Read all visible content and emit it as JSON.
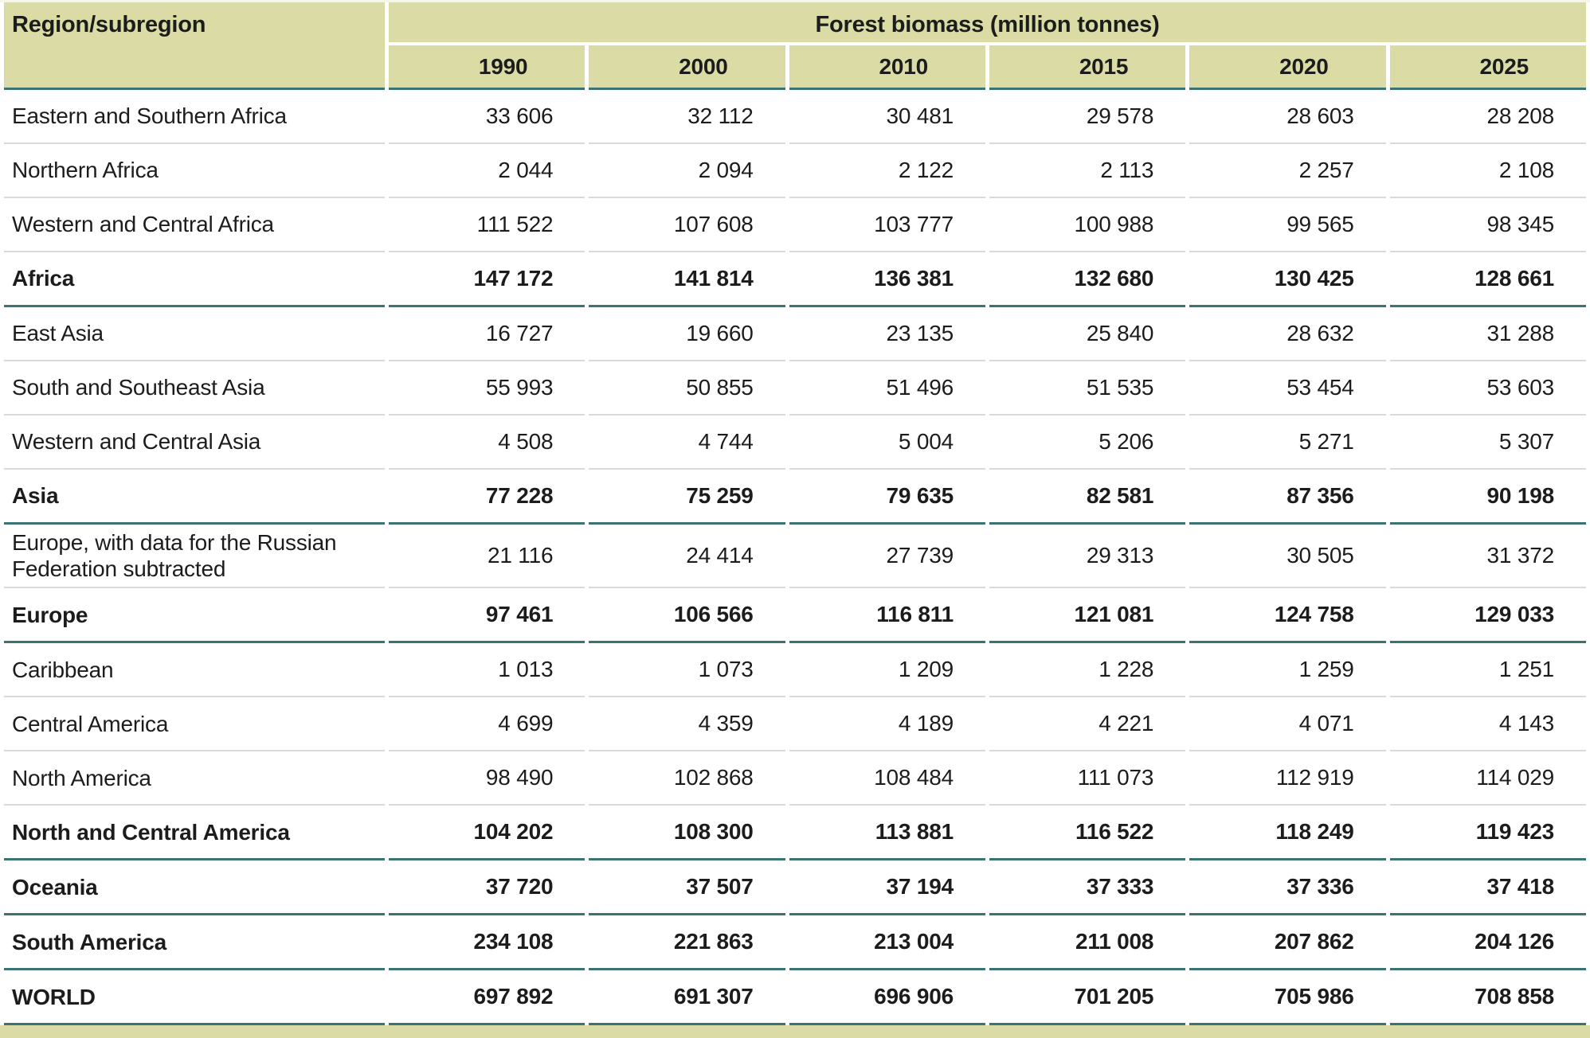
{
  "colors": {
    "header_background": "#dbdca5",
    "teal_divider": "#3a7472",
    "gray_divider": "#d9d9d9"
  },
  "table": {
    "region_header": "Region/subregion",
    "group_header": "Forest biomass (million tonnes)",
    "years": [
      "1990",
      "2000",
      "2010",
      "2015",
      "2020",
      "2025"
    ],
    "rows": [
      {
        "label": "Eastern and Southern Africa",
        "bold": false,
        "values": [
          "33 606",
          "32 112",
          "30 481",
          "29 578",
          "28 603",
          "28 208"
        ]
      },
      {
        "label": "Northern Africa",
        "bold": false,
        "values": [
          "2 044",
          "2 094",
          "2 122",
          "2 113",
          "2 257",
          "2 108"
        ]
      },
      {
        "label": "Western and Central Africa",
        "bold": false,
        "values": [
          "111 522",
          "107 608",
          "103 777",
          "100 988",
          "99 565",
          "98 345"
        ]
      },
      {
        "label": "Africa",
        "bold": true,
        "values": [
          "147 172",
          "141 814",
          "136 381",
          "132 680",
          "130 425",
          "128 661"
        ]
      },
      {
        "label": "East Asia",
        "bold": false,
        "values": [
          "16 727",
          "19 660",
          "23 135",
          "25 840",
          "28 632",
          "31 288"
        ]
      },
      {
        "label": "South and Southeast Asia",
        "bold": false,
        "values": [
          "55 993",
          "50 855",
          "51 496",
          "51 535",
          "53 454",
          "53 603"
        ]
      },
      {
        "label": "Western and Central Asia",
        "bold": false,
        "values": [
          "4 508",
          "4 744",
          "5 004",
          "5 206",
          "5 271",
          "5 307"
        ]
      },
      {
        "label": "Asia",
        "bold": true,
        "values": [
          "77 228",
          "75 259",
          "79 635",
          "82 581",
          "87 356",
          "90 198"
        ]
      },
      {
        "label": "Europe, with data for the Russian Federation subtracted",
        "bold": false,
        "values": [
          "21 116",
          "24 414",
          "27 739",
          "29 313",
          "30 505",
          "31 372"
        ]
      },
      {
        "label": "Europe",
        "bold": true,
        "values": [
          "97 461",
          "106 566",
          "116 811",
          "121 081",
          "124 758",
          "129 033"
        ]
      },
      {
        "label": "Caribbean",
        "bold": false,
        "values": [
          "1 013",
          "1 073",
          "1 209",
          "1 228",
          "1 259",
          "1 251"
        ]
      },
      {
        "label": "Central America",
        "bold": false,
        "values": [
          "4 699",
          "4 359",
          "4 189",
          "4 221",
          "4 071",
          "4 143"
        ]
      },
      {
        "label": "North America",
        "bold": false,
        "values": [
          "98 490",
          "102 868",
          "108 484",
          "111 073",
          "112 919",
          "114 029"
        ]
      },
      {
        "label": "North and Central America",
        "bold": true,
        "values": [
          "104 202",
          "108 300",
          "113 881",
          "116 522",
          "118 249",
          "119 423"
        ]
      },
      {
        "label": "Oceania",
        "bold": true,
        "values": [
          "37 720",
          "37 507",
          "37 194",
          "37 333",
          "37 336",
          "37 418"
        ]
      },
      {
        "label": "South America",
        "bold": true,
        "values": [
          "234 108",
          "221 863",
          "213 004",
          "211 008",
          "207 862",
          "204 126"
        ]
      },
      {
        "label": "WORLD",
        "bold": true,
        "values": [
          "697 892",
          "691 307",
          "696 906",
          "701 205",
          "705 986",
          "708 858"
        ]
      }
    ]
  },
  "chart_data": {
    "type": "table",
    "title": "Forest biomass (million tonnes)",
    "categories": [
      "1990",
      "2000",
      "2010",
      "2015",
      "2020",
      "2025"
    ],
    "series": [
      {
        "name": "Eastern and Southern Africa",
        "values": [
          33606,
          32112,
          30481,
          29578,
          28603,
          28208
        ]
      },
      {
        "name": "Northern Africa",
        "values": [
          2044,
          2094,
          2122,
          2113,
          2257,
          2108
        ]
      },
      {
        "name": "Western and Central Africa",
        "values": [
          111522,
          107608,
          103777,
          100988,
          99565,
          98345
        ]
      },
      {
        "name": "Africa",
        "values": [
          147172,
          141814,
          136381,
          132680,
          130425,
          128661
        ]
      },
      {
        "name": "East Asia",
        "values": [
          16727,
          19660,
          23135,
          25840,
          28632,
          31288
        ]
      },
      {
        "name": "South and Southeast Asia",
        "values": [
          55993,
          50855,
          51496,
          51535,
          53454,
          53603
        ]
      },
      {
        "name": "Western and Central Asia",
        "values": [
          4508,
          4744,
          5004,
          5206,
          5271,
          5307
        ]
      },
      {
        "name": "Asia",
        "values": [
          77228,
          75259,
          79635,
          82581,
          87356,
          90198
        ]
      },
      {
        "name": "Europe, with data for the Russian Federation subtracted",
        "values": [
          21116,
          24414,
          27739,
          29313,
          30505,
          31372
        ]
      },
      {
        "name": "Europe",
        "values": [
          97461,
          106566,
          116811,
          121081,
          124758,
          129033
        ]
      },
      {
        "name": "Caribbean",
        "values": [
          1013,
          1073,
          1209,
          1228,
          1259,
          1251
        ]
      },
      {
        "name": "Central America",
        "values": [
          4699,
          4359,
          4189,
          4221,
          4071,
          4143
        ]
      },
      {
        "name": "North America",
        "values": [
          98490,
          102868,
          108484,
          111073,
          112919,
          114029
        ]
      },
      {
        "name": "North and Central America",
        "values": [
          104202,
          108300,
          113881,
          116522,
          118249,
          119423
        ]
      },
      {
        "name": "Oceania",
        "values": [
          37720,
          37507,
          37194,
          37333,
          37336,
          37418
        ]
      },
      {
        "name": "South America",
        "values": [
          234108,
          221863,
          213004,
          211008,
          207862,
          204126
        ]
      },
      {
        "name": "WORLD",
        "values": [
          697892,
          691307,
          696906,
          701205,
          705986,
          708858
        ]
      }
    ]
  }
}
